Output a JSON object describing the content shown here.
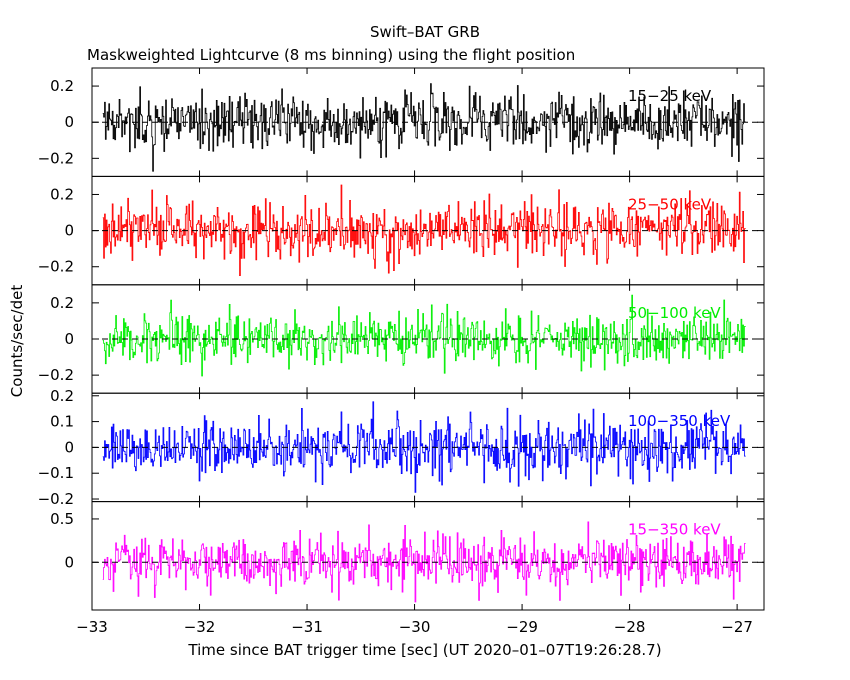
{
  "chart_data": {
    "type": "line",
    "title": "Swift–BAT GRB",
    "subtitle": "Maskweighted Lightcurve (8 ms binning) using the flight position",
    "xlabel": "Time since BAT trigger time [sec] (UT 2020–01–07T19:26:28.7)",
    "ylabel": "Counts/sec/det",
    "xlim": [
      -33.0,
      -26.75
    ],
    "x_range_of_data": [
      -32.9,
      -26.92
    ],
    "binning_sec": 0.008,
    "x_ticks": [
      -33,
      -32,
      -31,
      -30,
      -29,
      -28,
      -27
    ],
    "x_tick_labels": [
      "−33",
      "−32",
      "−31",
      "−30",
      "−29",
      "−28",
      "−27"
    ],
    "grid": false,
    "legend": "none",
    "panels": [
      {
        "name": "15−25 keV",
        "label": "15−25 keV",
        "color": "#000000",
        "ylim": [
          -0.3,
          0.3
        ],
        "y_ticks": [
          -0.2,
          0,
          0.2
        ],
        "y_tick_labels": [
          "−0.2",
          "0",
          "0.2"
        ],
        "noise_amplitude": 0.15,
        "mean": 0
      },
      {
        "name": "25−50 keV",
        "label": "25−50 keV",
        "color": "#ff0000",
        "ylim": [
          -0.3,
          0.3
        ],
        "y_ticks": [
          -0.2,
          0,
          0.2
        ],
        "y_tick_labels": [
          "−0.2",
          "0",
          "0.2"
        ],
        "noise_amplitude": 0.14,
        "mean": 0
      },
      {
        "name": "50−100 keV",
        "label": "50−100 keV",
        "color": "#00ee00",
        "ylim": [
          -0.3,
          0.3
        ],
        "y_ticks": [
          -0.2,
          0,
          0.2
        ],
        "y_tick_labels": [
          "−0.2",
          "0",
          "0.2"
        ],
        "noise_amplitude": 0.13,
        "mean": 0
      },
      {
        "name": "100−350 keV",
        "label": "100−350 keV",
        "color": "#0000ff",
        "ylim": [
          -0.21,
          0.21
        ],
        "y_ticks": [
          -0.2,
          -0.1,
          0,
          0.1,
          0.2
        ],
        "y_tick_labels": [
          "−0.2",
          "−0.1",
          "0",
          "0.1",
          "0.2"
        ],
        "noise_amplitude": 0.1,
        "mean": 0
      },
      {
        "name": "15−350 keV",
        "label": "15−350 keV",
        "color": "#ff00ff",
        "ylim": [
          -0.55,
          0.7
        ],
        "y_ticks": [
          0,
          0.5
        ],
        "y_tick_labels": [
          "0",
          "0.5"
        ],
        "noise_amplitude": 0.28,
        "mean": 0
      }
    ]
  }
}
